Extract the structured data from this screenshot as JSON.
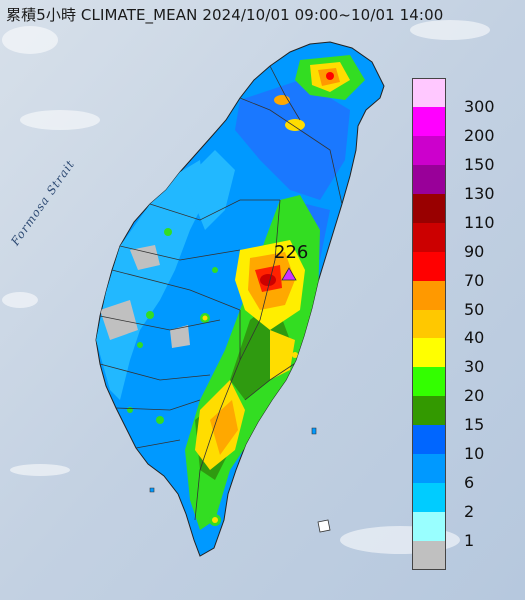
{
  "header": {
    "title": "累積5小時 CLIMATE_MEAN 2024/10/01 09:00~10/01 14:00"
  },
  "map": {
    "strait_label": "Formosa Strait",
    "max_station_value": "226",
    "max_marker_icon": "triangle-marker"
  },
  "legend": {
    "unit": "",
    "items": [
      {
        "label": "300",
        "color": "#ffc8ff"
      },
      {
        "label": "200",
        "color": "#ff00ff"
      },
      {
        "label": "150",
        "color": "#cc00cc"
      },
      {
        "label": "130",
        "color": "#990099"
      },
      {
        "label": "110",
        "color": "#990000"
      },
      {
        "label": "90",
        "color": "#cc0000"
      },
      {
        "label": "70",
        "color": "#ff0000"
      },
      {
        "label": "50",
        "color": "#ff9900"
      },
      {
        "label": "40",
        "color": "#ffc800"
      },
      {
        "label": "30",
        "color": "#ffff00"
      },
      {
        "label": "20",
        "color": "#33ff00"
      },
      {
        "label": "15",
        "color": "#339900"
      },
      {
        "label": "10",
        "color": "#0066ff"
      },
      {
        "label": "6",
        "color": "#0099ff"
      },
      {
        "label": "2",
        "color": "#00ccff"
      },
      {
        "label": "1",
        "color": "#99ffff"
      },
      {
        "label": "",
        "color": "#c0c0c0"
      }
    ]
  }
}
